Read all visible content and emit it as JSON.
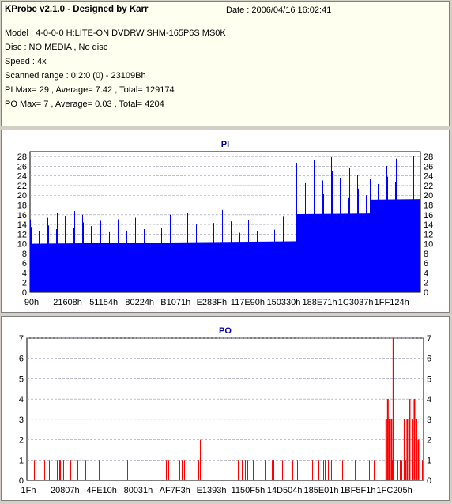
{
  "info": {
    "title": "KProbe v2.1.0 - Designed by Karr",
    "date": "Date : 2006/04/16 16:02:41",
    "lines": [
      "Model : 4-0-0-0 H:LITE-ON DVDRW SHM-165P6S MS0K",
      "Disc : NO MEDIA , No disc",
      "Speed : 4x",
      "Scanned range : 0:2:0 (0) - 23109Bh",
      "PI Max= 29 , Average= 7.42 , Total= 129174",
      "PO Max= 7 , Average= 0.03 , Total= 4204"
    ]
  },
  "chart_data": [
    {
      "type": "bar",
      "title": "PI",
      "color": "#0000ff",
      "ylim": [
        0,
        29
      ],
      "yticks": [
        0,
        2,
        4,
        6,
        8,
        10,
        12,
        14,
        16,
        18,
        20,
        22,
        24,
        26,
        28
      ],
      "xtick_labels": [
        "90h",
        "21608h",
        "51154h",
        "80224h",
        "B1071h",
        "E283Fh",
        "117E90h",
        "150330h",
        "188E71h",
        "1C3037h",
        "1FF124h"
      ],
      "segments": [
        {
          "x_start": 0.0,
          "x_end": 0.68,
          "base_min": 8,
          "base_max": 12,
          "spike_max": 17,
          "noise_seed": 11
        },
        {
          "x_start": 0.68,
          "x_end": 0.87,
          "base_min": 15,
          "base_max": 19,
          "spike_max": 28,
          "noise_seed": 23
        },
        {
          "x_start": 0.87,
          "x_end": 1.0,
          "base_min": 17,
          "base_max": 22,
          "spike_max": 29,
          "noise_seed": 31
        }
      ],
      "max": 29,
      "average": 7.42,
      "total": 129174
    },
    {
      "type": "bar",
      "title": "PO",
      "color": "#ff0000",
      "ylim": [
        0,
        7
      ],
      "yticks": [
        0,
        1,
        2,
        3,
        4,
        5,
        6,
        7
      ],
      "xtick_labels": [
        "1Fh",
        "20807h",
        "4FE10h",
        "80031h",
        "AF7F3h",
        "E1393h",
        "1150F5h",
        "14D504h",
        "185E01h",
        "1BF5F1h",
        "1FC205h"
      ],
      "spikes": [
        {
          "x": 0.922,
          "value": 7
        },
        {
          "x": 0.904,
          "value": 3
        },
        {
          "x": 0.908,
          "value": 4
        },
        {
          "x": 0.912,
          "value": 3
        },
        {
          "x": 0.917,
          "value": 3
        },
        {
          "x": 0.95,
          "value": 3
        },
        {
          "x": 0.957,
          "value": 3
        },
        {
          "x": 0.963,
          "value": 4
        },
        {
          "x": 0.97,
          "value": 3
        },
        {
          "x": 0.975,
          "value": 4
        },
        {
          "x": 0.98,
          "value": 3
        },
        {
          "x": 0.985,
          "value": 2
        }
      ],
      "max": 7,
      "average": 0.03,
      "total": 4204
    }
  ]
}
